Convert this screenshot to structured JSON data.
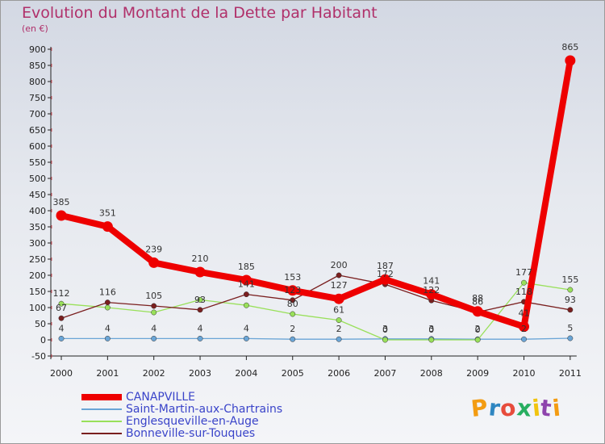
{
  "title": "Evolution du Montant de la Dette par Habitant",
  "unit": "(en €)",
  "logo_text": "Proxiti",
  "logo_colors": [
    "#f39c12",
    "#2e86c1",
    "#e74c3c",
    "#27ae60",
    "#f1c40f",
    "#8e44ad",
    "#f39c12"
  ],
  "chart_data": {
    "type": "line",
    "x": [
      "2000",
      "2001",
      "2002",
      "2003",
      "2004",
      "2005",
      "2006",
      "2007",
      "2008",
      "2009",
      "2010",
      "2011"
    ],
    "ylim": [
      -50,
      900
    ],
    "yticks": [
      -50,
      0,
      50,
      100,
      150,
      200,
      250,
      300,
      350,
      400,
      450,
      500,
      550,
      600,
      650,
      700,
      750,
      800,
      850,
      900
    ],
    "grid": false,
    "legend_position": "bottom-left",
    "series": [
      {
        "name": "CANAPVILLE",
        "color": "#ee0000",
        "values": [
          385,
          351,
          239,
          210,
          185,
          153,
          127,
          187,
          141,
          88,
          41,
          865
        ],
        "labels": [
          "385",
          "351",
          "239",
          "210",
          "185",
          "153",
          "127",
          "187",
          "141",
          "88",
          "41",
          "865"
        ]
      },
      {
        "name": "Saint-Martin-aux-Chartrains",
        "color": "#6aa5d6",
        "values": [
          4,
          4,
          4,
          4,
          4,
          2,
          2,
          3,
          3,
          2,
          2,
          5
        ],
        "labels": [
          "4",
          "4",
          "4",
          "4",
          "4",
          "2",
          "2",
          "3",
          "3",
          "2",
          "2",
          "5"
        ]
      },
      {
        "name": "Englesqueville-en-Auge",
        "color": "#99e05a",
        "values": [
          112,
          100,
          85,
          124,
          107,
          80,
          61,
          0,
          0,
          0,
          177,
          155
        ],
        "labels": [
          "112",
          "",
          "",
          "",
          "",
          "80",
          "61",
          "0",
          "0",
          "0",
          "177",
          "155"
        ]
      },
      {
        "name": "Bonneville-sur-Touques",
        "color": "#7a1f1f",
        "values": [
          67,
          116,
          105,
          93,
          141,
          123,
          200,
          172,
          122,
          86,
          118,
          93
        ],
        "labels": [
          "67",
          "116",
          "105",
          "93",
          "141",
          "123",
          "200",
          "172",
          "122",
          "86",
          "118",
          "93"
        ]
      }
    ]
  }
}
